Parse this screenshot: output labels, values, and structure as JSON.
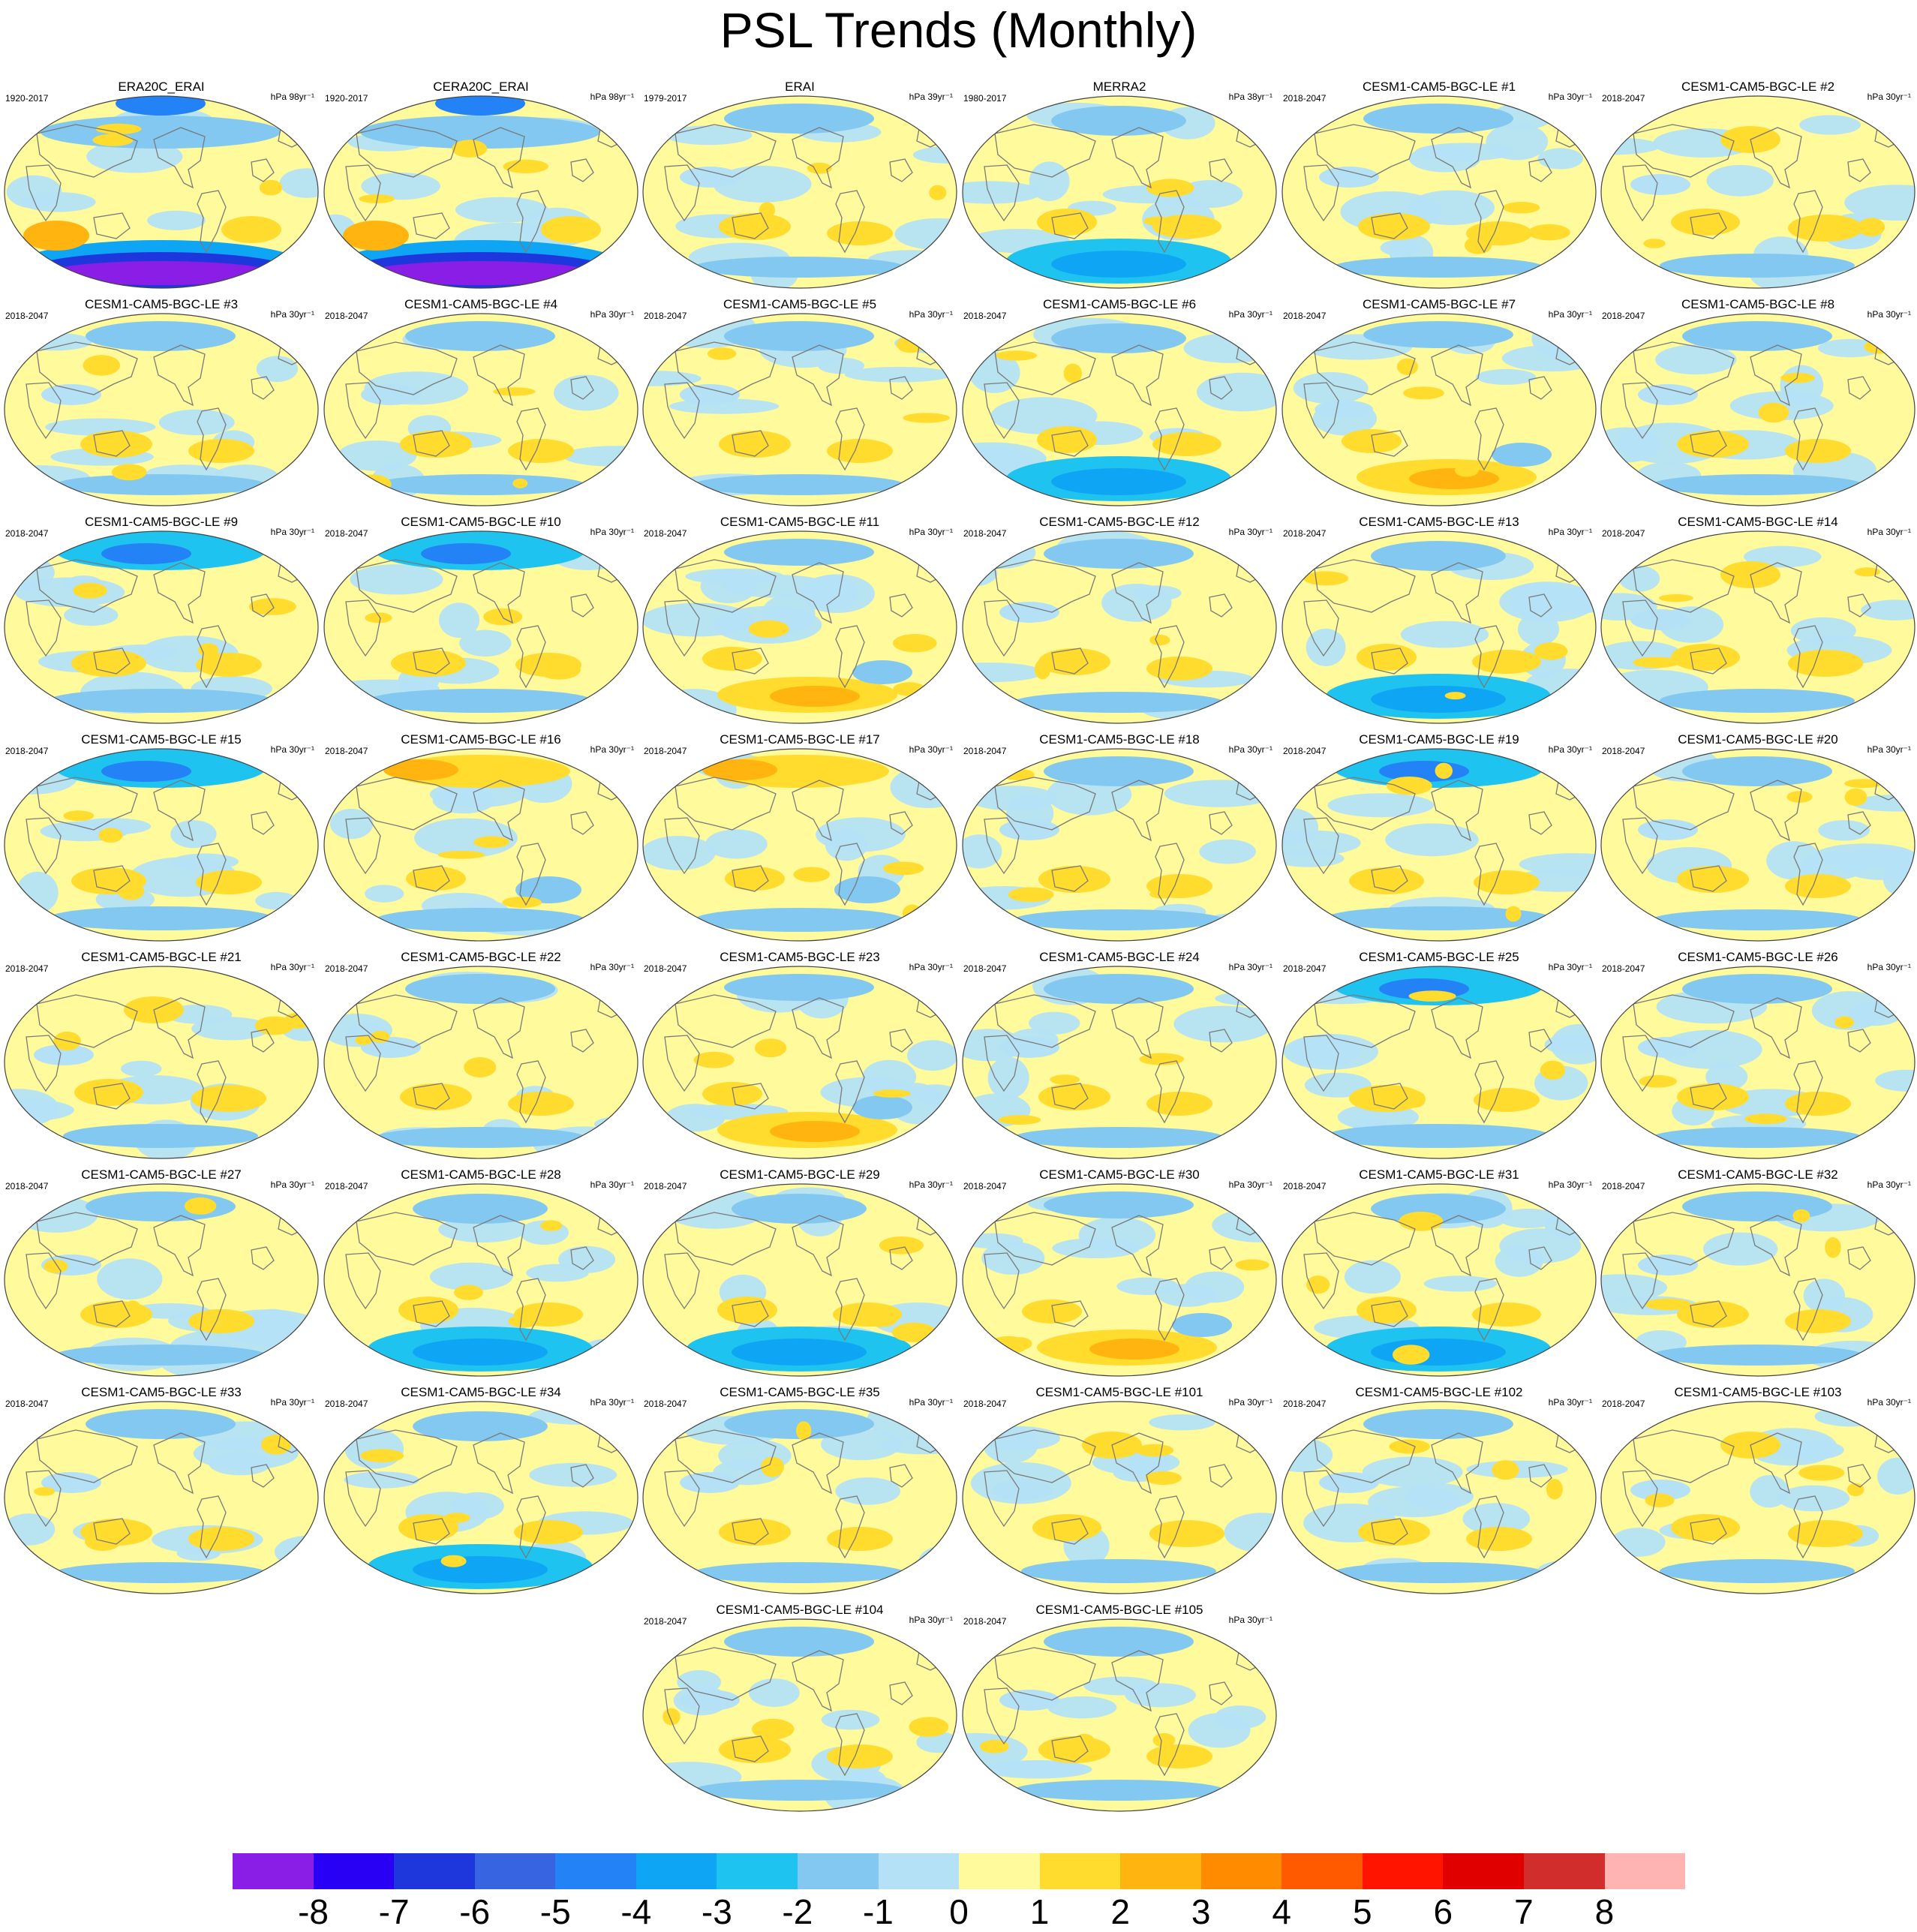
{
  "title": "PSL Trends (Monthly)",
  "colorbar": {
    "colors": [
      "#8a1ee6",
      "#2a00f5",
      "#1e37dc",
      "#3764e1",
      "#2382f5",
      "#0fa5f5",
      "#1ec3f0",
      "#82c8f0",
      "#b4e1f5",
      "#fffa9b",
      "#ffdc2d",
      "#ffb40f",
      "#ff8c00",
      "#ff5a00",
      "#ff1400",
      "#e10000",
      "#d22d2d",
      "#ffb4b4"
    ],
    "ticks": [
      "-8",
      "-7",
      "-6",
      "-5",
      "-4",
      "-3",
      "-2",
      "-1",
      "0",
      "1",
      "2",
      "3",
      "4",
      "5",
      "6",
      "7",
      "8"
    ]
  },
  "panels": [
    {
      "title": "ERA20C_ERAI",
      "period": "1920-2017",
      "units": "hPa 98yr⁻¹",
      "theme": "strongneg"
    },
    {
      "title": "CERA20C_ERAI",
      "period": "1920-2017",
      "units": "hPa 98yr⁻¹",
      "theme": "strongneg"
    },
    {
      "title": "ERAI",
      "period": "1979-2017",
      "units": "hPa 39yr⁻¹",
      "theme": "mixed"
    },
    {
      "title": "MERRA2",
      "period": "1980-2017",
      "units": "hPa 38yr⁻¹",
      "theme": "negsouth"
    },
    {
      "title": "CESM1-CAM5-BGC-LE #1",
      "period": "2018-2047",
      "units": "hPa 30yr⁻¹",
      "theme": "mixed"
    },
    {
      "title": "CESM1-CAM5-BGC-LE #2",
      "period": "2018-2047",
      "units": "hPa 30yr⁻¹",
      "theme": "pos"
    },
    {
      "title": "CESM1-CAM5-BGC-LE #3",
      "period": "2018-2047",
      "units": "hPa 30yr⁻¹",
      "theme": "mixed"
    },
    {
      "title": "CESM1-CAM5-BGC-LE #4",
      "period": "2018-2047",
      "units": "hPa 30yr⁻¹",
      "theme": "mixed"
    },
    {
      "title": "CESM1-CAM5-BGC-LE #5",
      "period": "2018-2047",
      "units": "hPa 30yr⁻¹",
      "theme": "mixed"
    },
    {
      "title": "CESM1-CAM5-BGC-LE #6",
      "period": "2018-2047",
      "units": "hPa 30yr⁻¹",
      "theme": "negsouth"
    },
    {
      "title": "CESM1-CAM5-BGC-LE #7",
      "period": "2018-2047",
      "units": "hPa 30yr⁻¹",
      "theme": "possouth"
    },
    {
      "title": "CESM1-CAM5-BGC-LE #8",
      "period": "2018-2047",
      "units": "hPa 30yr⁻¹",
      "theme": "mixed"
    },
    {
      "title": "CESM1-CAM5-BGC-LE #9",
      "period": "2018-2047",
      "units": "hPa 30yr⁻¹",
      "theme": "negnorth"
    },
    {
      "title": "CESM1-CAM5-BGC-LE #10",
      "period": "2018-2047",
      "units": "hPa 30yr⁻¹",
      "theme": "negnorth"
    },
    {
      "title": "CESM1-CAM5-BGC-LE #11",
      "period": "2018-2047",
      "units": "hPa 30yr⁻¹",
      "theme": "possouth"
    },
    {
      "title": "CESM1-CAM5-BGC-LE #12",
      "period": "2018-2047",
      "units": "hPa 30yr⁻¹",
      "theme": "mixed"
    },
    {
      "title": "CESM1-CAM5-BGC-LE #13",
      "period": "2018-2047",
      "units": "hPa 30yr⁻¹",
      "theme": "negsouth"
    },
    {
      "title": "CESM1-CAM5-BGC-LE #14",
      "period": "2018-2047",
      "units": "hPa 30yr⁻¹",
      "theme": "pos"
    },
    {
      "title": "CESM1-CAM5-BGC-LE #15",
      "period": "2018-2047",
      "units": "hPa 30yr⁻¹",
      "theme": "negnorth"
    },
    {
      "title": "CESM1-CAM5-BGC-LE #16",
      "period": "2018-2047",
      "units": "hPa 30yr⁻¹",
      "theme": "posnorth"
    },
    {
      "title": "CESM1-CAM5-BGC-LE #17",
      "period": "2018-2047",
      "units": "hPa 30yr⁻¹",
      "theme": "posnorth"
    },
    {
      "title": "CESM1-CAM5-BGC-LE #18",
      "period": "2018-2047",
      "units": "hPa 30yr⁻¹",
      "theme": "mixed"
    },
    {
      "title": "CESM1-CAM5-BGC-LE #19",
      "period": "2018-2047",
      "units": "hPa 30yr⁻¹",
      "theme": "negnorth"
    },
    {
      "title": "CESM1-CAM5-BGC-LE #20",
      "period": "2018-2047",
      "units": "hPa 30yr⁻¹",
      "theme": "mixed"
    },
    {
      "title": "CESM1-CAM5-BGC-LE #21",
      "period": "2018-2047",
      "units": "hPa 30yr⁻¹",
      "theme": "pos"
    },
    {
      "title": "CESM1-CAM5-BGC-LE #22",
      "period": "2018-2047",
      "units": "hPa 30yr⁻¹",
      "theme": "mixed"
    },
    {
      "title": "CESM1-CAM5-BGC-LE #23",
      "period": "2018-2047",
      "units": "hPa 30yr⁻¹",
      "theme": "possouth"
    },
    {
      "title": "CESM1-CAM5-BGC-LE #24",
      "period": "2018-2047",
      "units": "hPa 30yr⁻¹",
      "theme": "mixed"
    },
    {
      "title": "CESM1-CAM5-BGC-LE #25",
      "period": "2018-2047",
      "units": "hPa 30yr⁻¹",
      "theme": "negnorth"
    },
    {
      "title": "CESM1-CAM5-BGC-LE #26",
      "period": "2018-2047",
      "units": "hPa 30yr⁻¹",
      "theme": "mixed"
    },
    {
      "title": "CESM1-CAM5-BGC-LE #27",
      "period": "2018-2047",
      "units": "hPa 30yr⁻¹",
      "theme": "mixed"
    },
    {
      "title": "CESM1-CAM5-BGC-LE #28",
      "period": "2018-2047",
      "units": "hPa 30yr⁻¹",
      "theme": "negsouth"
    },
    {
      "title": "CESM1-CAM5-BGC-LE #29",
      "period": "2018-2047",
      "units": "hPa 30yr⁻¹",
      "theme": "negsouth"
    },
    {
      "title": "CESM1-CAM5-BGC-LE #30",
      "period": "2018-2047",
      "units": "hPa 30yr⁻¹",
      "theme": "possouth"
    },
    {
      "title": "CESM1-CAM5-BGC-LE #31",
      "period": "2018-2047",
      "units": "hPa 30yr⁻¹",
      "theme": "negsouth"
    },
    {
      "title": "CESM1-CAM5-BGC-LE #32",
      "period": "2018-2047",
      "units": "hPa 30yr⁻¹",
      "theme": "mixed"
    },
    {
      "title": "CESM1-CAM5-BGC-LE #33",
      "period": "2018-2047",
      "units": "hPa 30yr⁻¹",
      "theme": "mixed"
    },
    {
      "title": "CESM1-CAM5-BGC-LE #34",
      "period": "2018-2047",
      "units": "hPa 30yr⁻¹",
      "theme": "negsouth"
    },
    {
      "title": "CESM1-CAM5-BGC-LE #35",
      "period": "2018-2047",
      "units": "hPa 30yr⁻¹",
      "theme": "mixed"
    },
    {
      "title": "CESM1-CAM5-BGC-LE #101",
      "period": "2018-2047",
      "units": "hPa 30yr⁻¹",
      "theme": "pos"
    },
    {
      "title": "CESM1-CAM5-BGC-LE #102",
      "period": "2018-2047",
      "units": "hPa 30yr⁻¹",
      "theme": "mixed"
    },
    {
      "title": "CESM1-CAM5-BGC-LE #103",
      "period": "2018-2047",
      "units": "hPa 30yr⁻¹",
      "theme": "pos"
    },
    {
      "title": "CESM1-CAM5-BGC-LE #104",
      "period": "2018-2047",
      "units": "hPa 30yr⁻¹",
      "theme": "mixed"
    },
    {
      "title": "CESM1-CAM5-BGC-LE #105",
      "period": "2018-2047",
      "units": "hPa 30yr⁻¹",
      "theme": "mixed"
    }
  ]
}
